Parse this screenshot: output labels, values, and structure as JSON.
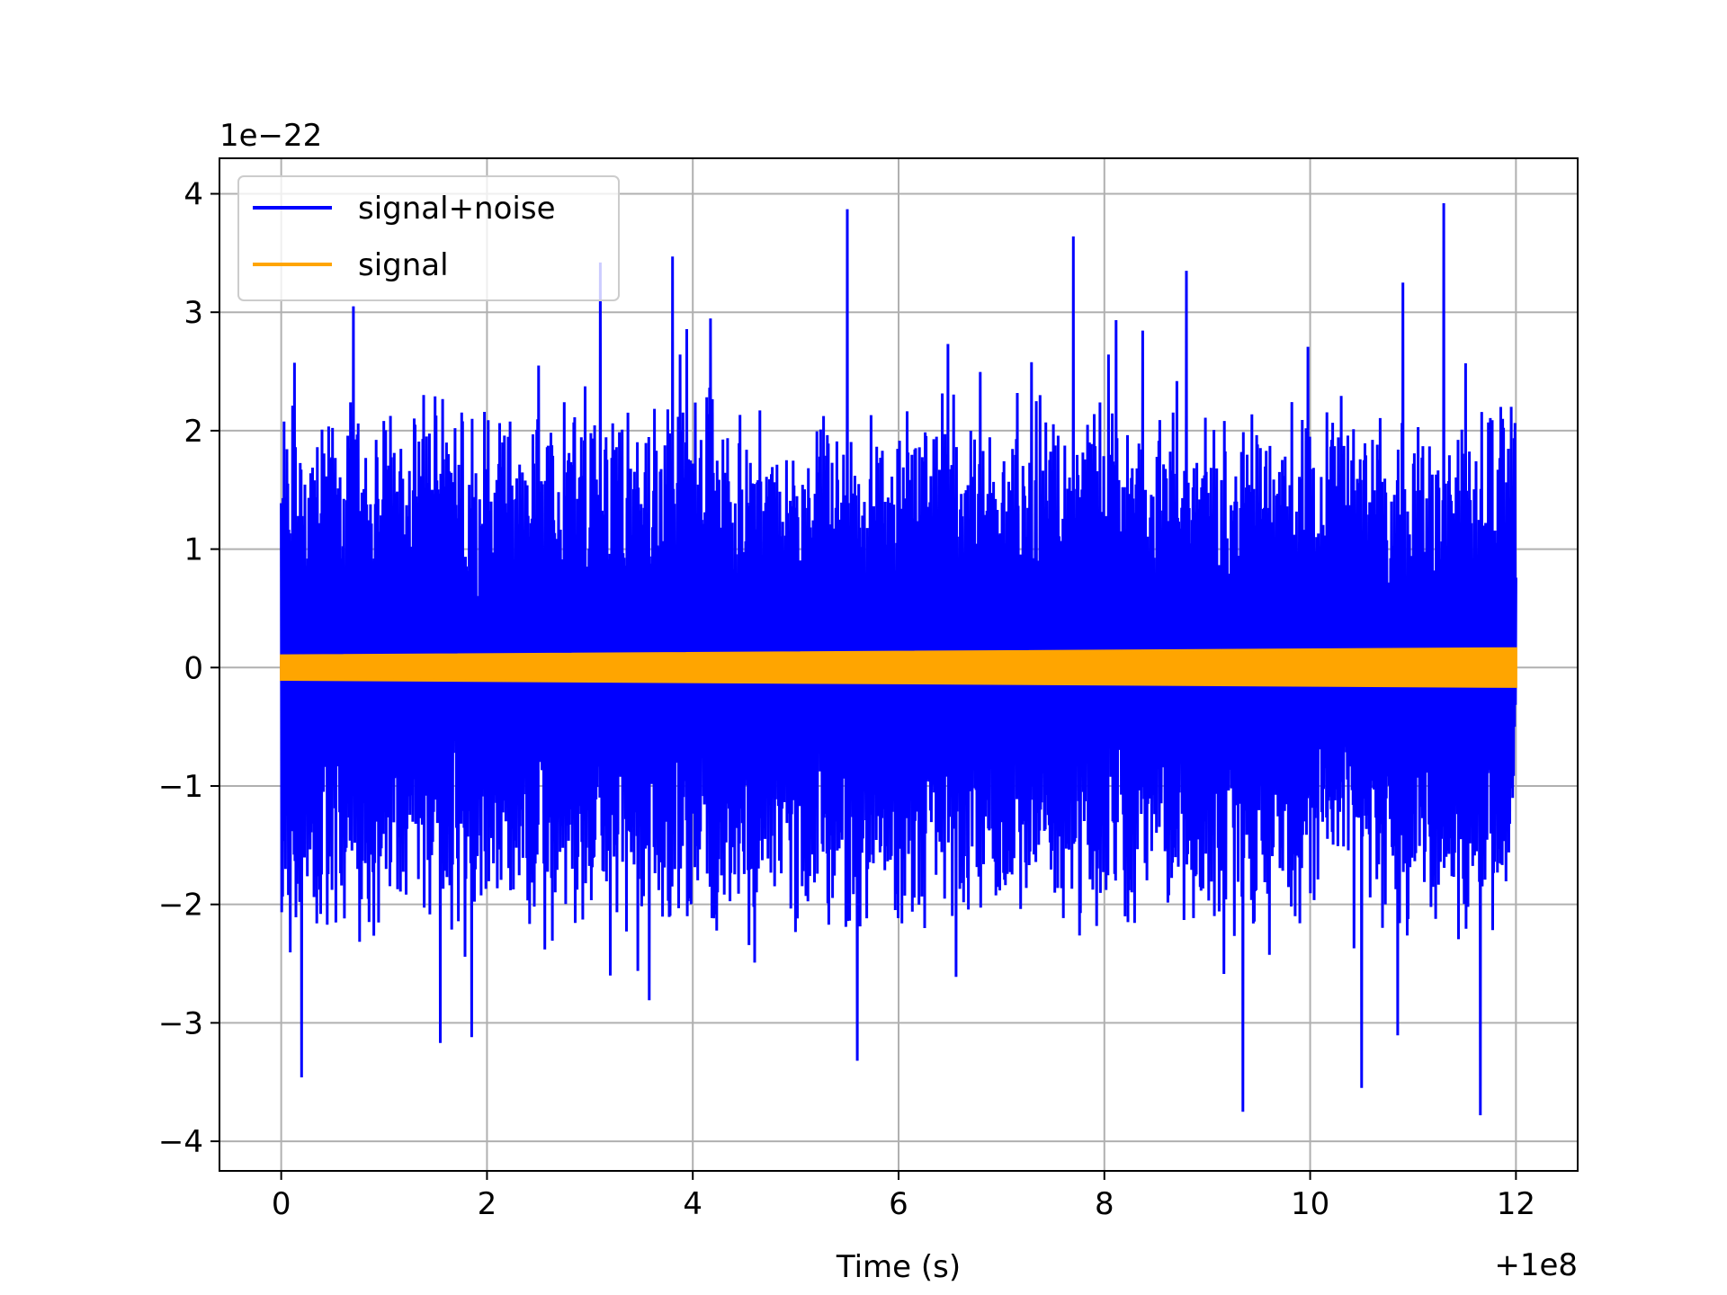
{
  "chart_data": {
    "type": "line",
    "title": "",
    "xlabel": "Time (s)",
    "ylabel": "",
    "x_offset_label": "+1e8",
    "y_scale_label": "1e−22",
    "xlim": [
      -0.6,
      12.6
    ],
    "ylim": [
      -4.25,
      4.3
    ],
    "xticks": [
      0,
      2,
      4,
      6,
      8,
      10,
      12
    ],
    "xtick_labels": [
      "0",
      "2",
      "4",
      "6",
      "8",
      "10",
      "12"
    ],
    "yticks": [
      -4,
      -3,
      -2,
      -1,
      0,
      1,
      2,
      3,
      4
    ],
    "ytick_labels": [
      "−4",
      "−3",
      "−2",
      "−1",
      "0",
      "1",
      "2",
      "3",
      "4"
    ],
    "grid": true,
    "legend_position": "upper-left",
    "series": [
      {
        "name": "signal+noise",
        "color": "#0000ff",
        "x_range": [
          0,
          12
        ],
        "envelope": {
          "upper_peaks": [
            {
              "x": 0.7,
              "y": 3.05
            },
            {
              "x": 2.5,
              "y": 2.55
            },
            {
              "x": 3.1,
              "y": 3.42
            },
            {
              "x": 3.8,
              "y": 3.47
            },
            {
              "x": 5.5,
              "y": 3.87
            },
            {
              "x": 7.7,
              "y": 3.64
            },
            {
              "x": 8.8,
              "y": 3.35
            },
            {
              "x": 10.9,
              "y": 3.25
            },
            {
              "x": 11.3,
              "y": 3.92
            }
          ],
          "lower_peaks": [
            {
              "x": 0.2,
              "y": -3.46
            },
            {
              "x": 1.55,
              "y": -3.17
            },
            {
              "x": 1.85,
              "y": -3.12
            },
            {
              "x": 5.6,
              "y": -3.32
            },
            {
              "x": 9.35,
              "y": -3.75
            },
            {
              "x": 10.5,
              "y": -3.55
            },
            {
              "x": 11.65,
              "y": -3.78
            }
          ],
          "typical_upper": 1.9,
          "typical_lower": -1.9
        }
      },
      {
        "name": "signal",
        "color": "#ffa500",
        "x": [
          0,
          12
        ],
        "amplitude_start": 0.1,
        "amplitude_end": 0.16
      }
    ]
  }
}
